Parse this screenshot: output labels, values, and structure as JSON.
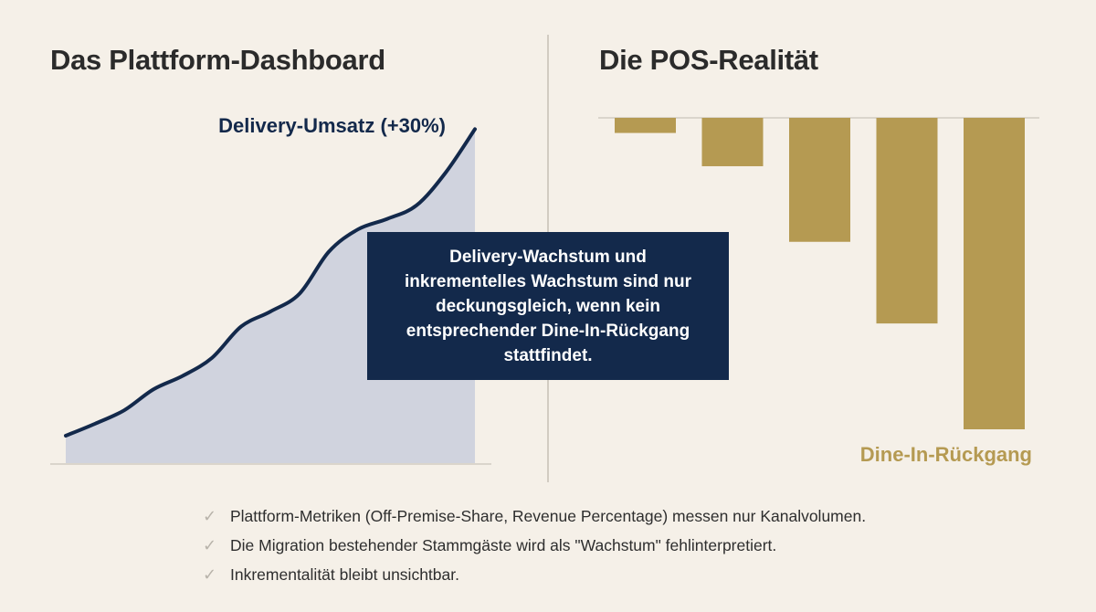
{
  "left_panel": {
    "title": "Das Plattform-Dashboard"
  },
  "right_panel": {
    "title": "Die POS-Realität"
  },
  "callout": {
    "text": "Delivery-Wachstum und inkrementelles Wachstum sind nur deckungsgleich, wenn kein entsprechender Dine-In-Rückgang stattfindet."
  },
  "bullets": [
    "Plattform-Metriken (Off-Premise-Share, Revenue Percentage) messen nur Kanalvolumen.",
    "Die Migration bestehender Stammgäste wird als \"Wachstum\" fehlinterpretiert.",
    "Inkrementalität bleibt unsichtbar."
  ],
  "colors": {
    "navy": "#13294b",
    "gold": "#b59a52",
    "area_fill": "#d0d3de",
    "background": "#f5f0e8"
  },
  "icons": {
    "bullet": "check-icon"
  },
  "chart_data": [
    {
      "type": "area",
      "annotation": "Delivery-Umsatz (+30%)",
      "series": [
        {
          "x": [
            0,
            1,
            2,
            3,
            4,
            5,
            6,
            7,
            8,
            9,
            10,
            11,
            12,
            13,
            14
          ],
          "values": [
            0,
            8,
            17,
            31,
            40,
            52,
            73,
            83,
            95,
            123,
            138,
            145,
            154,
            176,
            205
          ]
        }
      ],
      "ylim": [
        0,
        215
      ],
      "xlabel": "",
      "ylabel": ""
    },
    {
      "type": "bar",
      "annotation": "Dine-In-Rückgang",
      "categories": [
        "",
        "",
        "",
        "",
        ""
      ],
      "values": [
        -5,
        -16,
        -41,
        -68,
        -103
      ],
      "ylim": [
        -103,
        0
      ],
      "xlabel": "",
      "ylabel": ""
    }
  ]
}
